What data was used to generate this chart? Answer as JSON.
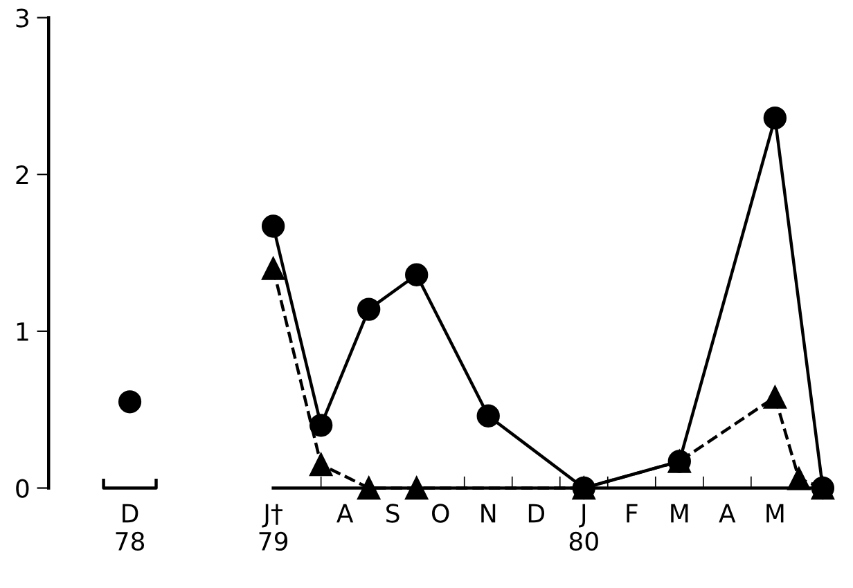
{
  "chart_data": {
    "type": "line",
    "ylim": [
      0,
      3
    ],
    "yticks": [
      0,
      1,
      2,
      3
    ],
    "categories": [
      "D\n78",
      null,
      null,
      null,
      null,
      null,
      "J†\n79",
      null,
      null,
      "A",
      null,
      "S",
      null,
      "O",
      null,
      "N",
      null,
      "D",
      null,
      "J\n80",
      null,
      "F",
      null,
      "M",
      null,
      "A",
      null,
      "M",
      null,
      null
    ],
    "grid": false,
    "series": [
      {
        "color": "#000000",
        "marker": "circle",
        "line_style": "solid",
        "values": [
          null,
          null,
          null,
          null,
          null,
          null,
          1.67,
          null,
          0.4,
          null,
          1.14,
          null,
          1.36,
          null,
          null,
          0.46,
          null,
          null,
          null,
          0,
          null,
          null,
          null,
          0.17,
          null,
          null,
          null,
          2.36,
          null,
          0
        ]
      },
      {
        "color": "#000000",
        "marker": "triangle",
        "line_style": "dashed",
        "values": [
          null,
          null,
          null,
          null,
          null,
          null,
          1.4,
          null,
          0.15,
          null,
          0,
          null,
          0,
          null,
          null,
          null,
          null,
          null,
          null,
          0,
          null,
          null,
          null,
          0.17,
          null,
          null,
          null,
          0.58,
          0.06,
          0
        ]
      },
      {
        "type": "scatter",
        "color": "#000000",
        "marker": "circle",
        "values": [
          0.55,
          null,
          null,
          null,
          null,
          null,
          null,
          null,
          null,
          null,
          null,
          null,
          null,
          null,
          null,
          null,
          null,
          null,
          null,
          null,
          null,
          null,
          null,
          null,
          null,
          null,
          null,
          null,
          null,
          null
        ]
      }
    ]
  }
}
